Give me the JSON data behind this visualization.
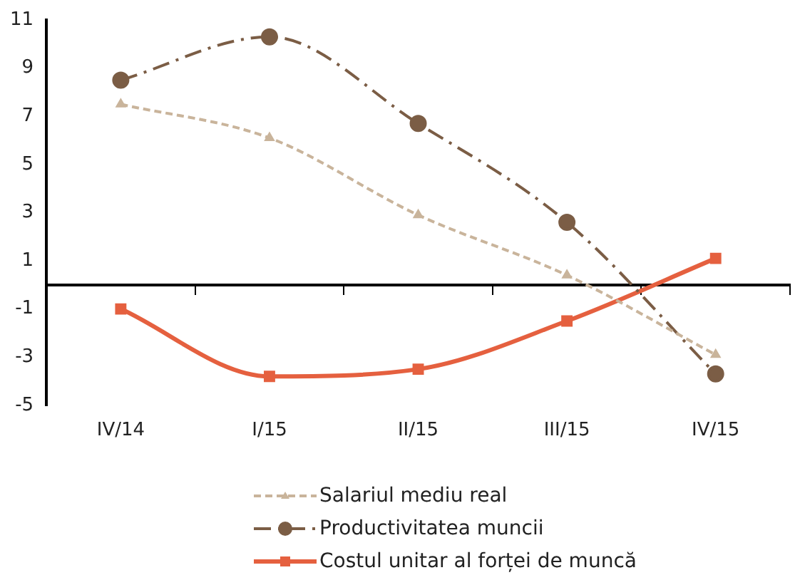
{
  "chart_data": {
    "type": "line",
    "categories": [
      "IV/14",
      "I/15",
      "II/15",
      "III/15",
      "IV/15"
    ],
    "series": [
      {
        "name": "Salariul mediu real",
        "color": "#c9b49b",
        "values": [
          7.5,
          6.1,
          2.9,
          0.4,
          -2.9
        ],
        "marker": "triangle",
        "line_style": "dashed"
      },
      {
        "name": "Productivitatea muncii",
        "color": "#7b5d45",
        "values": [
          8.5,
          10.3,
          6.7,
          2.6,
          -3.7
        ],
        "marker": "circle",
        "line_style": "dashdot"
      },
      {
        "name": "Costul unitar al forței de muncă",
        "color": "#e5603f",
        "values": [
          -1.0,
          -3.8,
          -3.5,
          -1.5,
          1.1
        ],
        "marker": "square",
        "line_style": "solid"
      }
    ],
    "ylim": [
      -5,
      11
    ],
    "yticks": [
      -5,
      -3,
      -1,
      1,
      3,
      5,
      7,
      9,
      11
    ],
    "grid": false,
    "legend": "bottom"
  }
}
